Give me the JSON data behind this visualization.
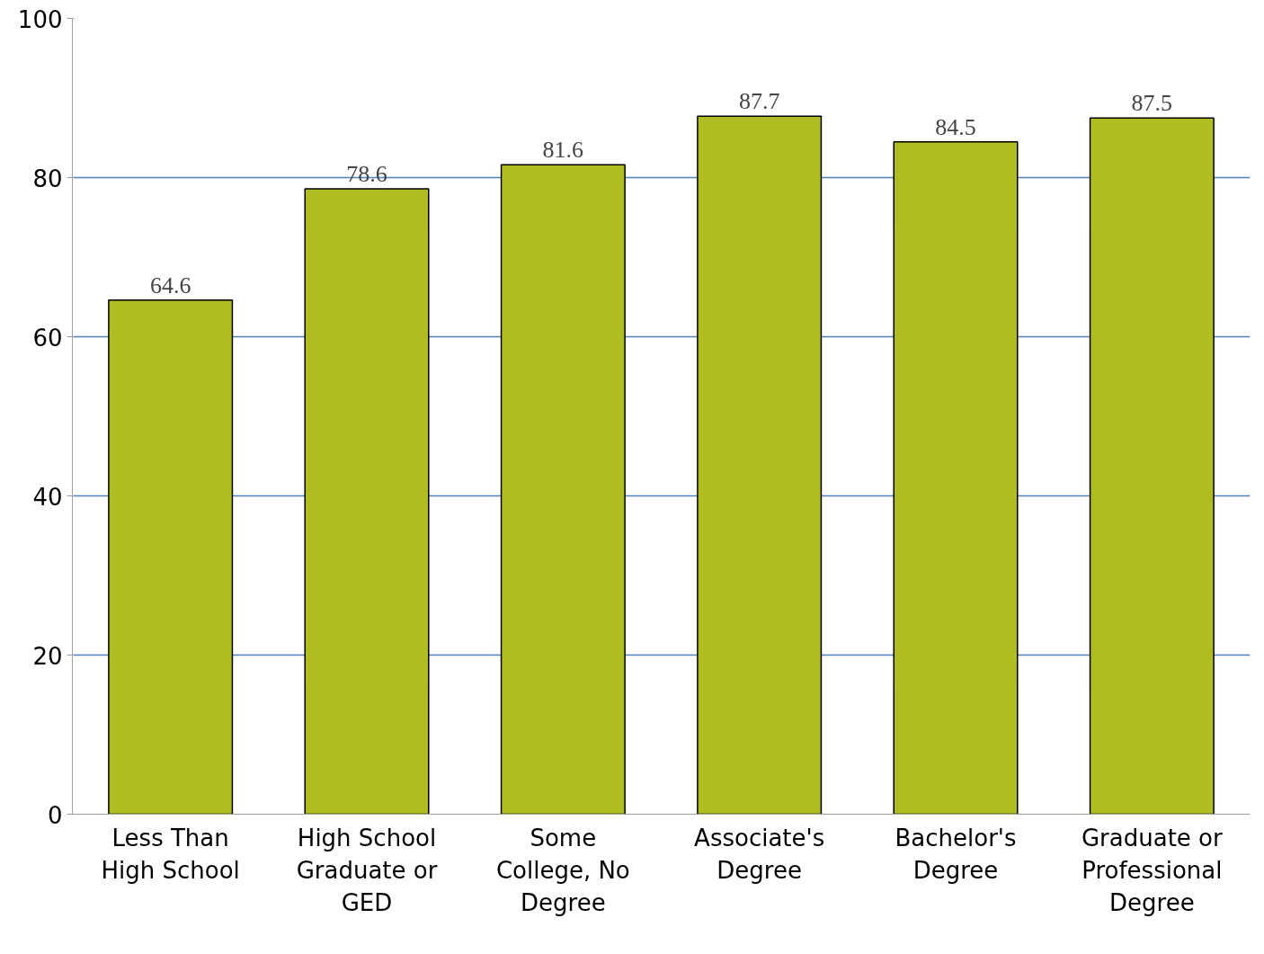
{
  "chart_data": {
    "type": "bar",
    "categories": [
      "Less Than High School",
      "High School Graduate or GED",
      "Some College, No Degree",
      "Associate's Degree",
      "Bachelor's Degree",
      "Graduate or Professional Degree"
    ],
    "values": [
      64.6,
      78.6,
      81.6,
      87.7,
      84.5,
      87.5
    ],
    "color": "#afbd22",
    "ylim": [
      0,
      100
    ],
    "yticks": [
      0,
      20,
      40,
      60,
      80,
      100
    ],
    "grid": "y",
    "data_labels": true
  }
}
